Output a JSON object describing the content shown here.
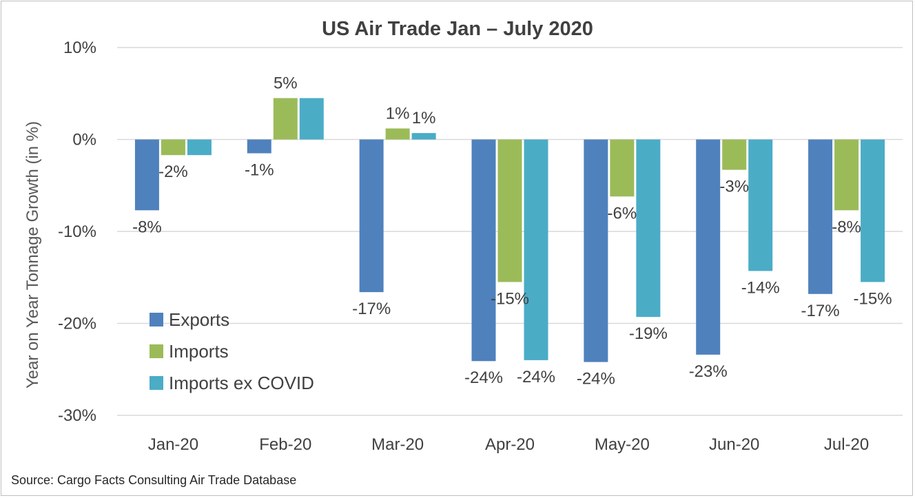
{
  "source_note": "Source: Cargo Facts Consulting Air Trade Database",
  "colors": {
    "exports": "#4f81bd",
    "imports": "#9bbb59",
    "imports_ex_covid": "#4bacc6",
    "grid": "#d9d9d9"
  },
  "chart_data": {
    "type": "bar",
    "title": "US Air Trade Jan – July 2020",
    "xlabel": "",
    "ylabel": "Year on Year Tonnage Growth (in %)",
    "ylim": [
      -30,
      10
    ],
    "yticks": [
      10,
      0,
      -10,
      -20,
      -30
    ],
    "ytick_labels": [
      "10%",
      "0%",
      "-10%",
      "-20%",
      "-30%"
    ],
    "categories": [
      "Jan-20",
      "Feb-20",
      "Mar-20",
      "Apr-20",
      "May-20",
      "Jun-20",
      "Jul-20"
    ],
    "series": [
      {
        "name": "Exports",
        "values": [
          -7.7,
          -1.5,
          -16.6,
          -24.1,
          -24.2,
          -23.4,
          -16.8
        ],
        "labels": [
          "-8%",
          "-1%",
          "-17%",
          "-24%",
          "-24%",
          "-23%",
          "-17%"
        ]
      },
      {
        "name": "Imports",
        "values": [
          -1.7,
          4.5,
          1.2,
          -15.5,
          -6.2,
          -3.3,
          -7.7
        ],
        "labels": [
          "-2%",
          "5%",
          "1%",
          "-15%",
          "-6%",
          "-3%",
          "-8%"
        ]
      },
      {
        "name": "Imports ex COVID",
        "values": [
          -1.7,
          4.5,
          0.7,
          -24.0,
          -19.3,
          -14.3,
          -15.5
        ],
        "labels": [
          "",
          "",
          "1%",
          "-24%",
          "-19%",
          "-14%",
          "-15%"
        ]
      }
    ],
    "grid": true,
    "legend_position": "bottom-left"
  }
}
